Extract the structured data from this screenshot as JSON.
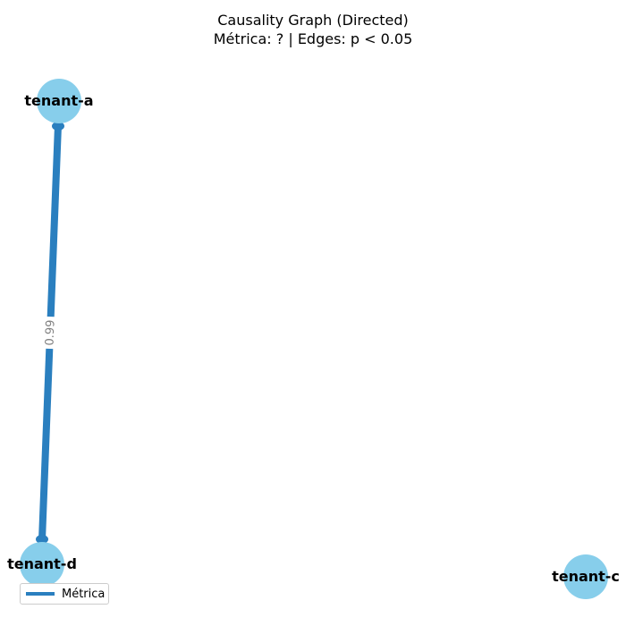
{
  "title": {
    "line1": "Causality Graph (Directed)",
    "line2": "Métrica: ? | Edges: p < 0.05"
  },
  "colors": {
    "node": "#87ceeb",
    "edge": "#2a7fbf",
    "edge_label": "#808080"
  },
  "nodes": [
    {
      "id": "tenant-a",
      "label": "tenant-a"
    },
    {
      "id": "tenant-d",
      "label": "tenant-d"
    },
    {
      "id": "tenant-c",
      "label": "tenant-c"
    }
  ],
  "edges": [
    {
      "source": "tenant-a",
      "target": "tenant-d",
      "label": "0.99",
      "bidirectional": true
    }
  ],
  "legend": {
    "label": "Métrica"
  }
}
